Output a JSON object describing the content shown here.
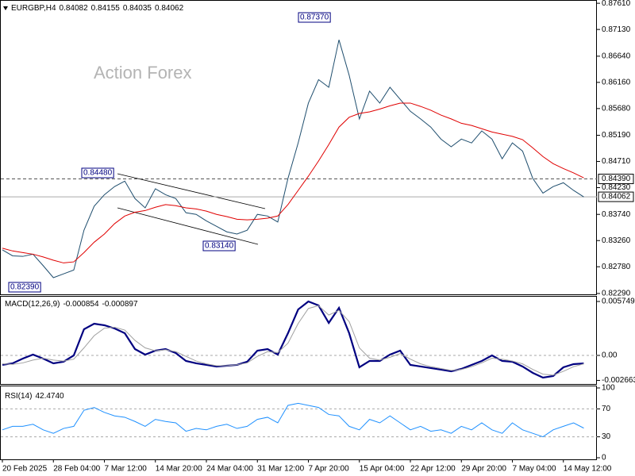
{
  "chart_data": [
    {
      "type": "line",
      "title": "EURGBP,H4",
      "ohlc": [
        0.84082,
        0.84155,
        0.84035,
        0.84062
      ],
      "watermark": "Action Forex",
      "series": [
        {
          "color": "#1f4e6e",
          "values": [
            0.8309,
            0.8298,
            0.8297,
            0.8301,
            0.828,
            0.8258,
            0.8265,
            0.8272,
            0.8345,
            0.8389,
            0.841,
            0.8425,
            0.8435,
            0.8403,
            0.8386,
            0.8421,
            0.841,
            0.8403,
            0.8377,
            0.8374,
            0.8362,
            0.8352,
            0.8342,
            0.8338,
            0.8345,
            0.8374,
            0.8371,
            0.836,
            0.844,
            0.8505,
            0.8578,
            0.8621,
            0.8607,
            0.8694,
            0.8629,
            0.8549,
            0.86,
            0.8578,
            0.8607,
            0.8585,
            0.8563,
            0.8549,
            0.8534,
            0.8512,
            0.8498,
            0.8512,
            0.8505,
            0.8527,
            0.8512,
            0.8476,
            0.8505,
            0.849,
            0.844,
            0.8413,
            0.8425,
            0.8432,
            0.8418,
            0.8406
          ]
        },
        {
          "color": "#e00000",
          "values": [
            0.8312,
            0.8307,
            0.8304,
            0.8301,
            0.8296,
            0.829,
            0.8285,
            0.8287,
            0.8304,
            0.8323,
            0.8338,
            0.8357,
            0.8371,
            0.8378,
            0.8381,
            0.8387,
            0.8392,
            0.839,
            0.8386,
            0.8384,
            0.838,
            0.8374,
            0.837,
            0.8365,
            0.8364,
            0.8365,
            0.8367,
            0.8371,
            0.8392,
            0.8418,
            0.8444,
            0.8472,
            0.8502,
            0.8534,
            0.8552,
            0.8559,
            0.8562,
            0.8567,
            0.8573,
            0.8578,
            0.8578,
            0.8572,
            0.8565,
            0.8556,
            0.8549,
            0.8541,
            0.8537,
            0.8531,
            0.8525,
            0.8521,
            0.8517,
            0.8511,
            0.8496,
            0.848,
            0.8467,
            0.8458,
            0.845,
            0.8441
          ]
        }
      ],
      "ylim": [
        0.8226,
        0.8767
      ],
      "yticks": [
        {
          "value": 0.8761,
          "label": "0.87610"
        },
        {
          "value": 0.8713,
          "label": "0.87130"
        },
        {
          "value": 0.8664,
          "label": "0.86640"
        },
        {
          "value": 0.8616,
          "label": "0.86160"
        },
        {
          "value": 0.8568,
          "label": "0.85680"
        },
        {
          "value": 0.8519,
          "label": "0.85190"
        },
        {
          "value": 0.8471,
          "label": "0.84710"
        },
        {
          "value": 0.8423,
          "label": "0.84230"
        },
        {
          "value": 0.8374,
          "label": "0.83740"
        },
        {
          "value": 0.8326,
          "label": "0.83260"
        },
        {
          "value": 0.8278,
          "label": "0.82780"
        },
        {
          "value": 0.8229,
          "label": "0.82290"
        }
      ],
      "hlines": [
        {
          "value": 0.8439,
          "label": "0.84390",
          "style": "dashed",
          "color": "#555555"
        },
        {
          "value": 0.84062,
          "label": "0.84062",
          "style": "solid",
          "color": "#aaaaaa"
        }
      ],
      "annotations": [
        "0.87370",
        "0.84480",
        "0.83140",
        "0.82390"
      ]
    },
    {
      "type": "line",
      "title": "MACD(12,26,9)",
      "header_values": [
        -0.000854,
        -0.000897
      ],
      "series": [
        {
          "color": "#000080",
          "values": [
            -0.001014,
            -0.000845,
            -0.000338,
            8.5e-05,
            -0.000338,
            -0.000845,
            -0.000676,
            0,
            0.002789,
            0.00338,
            0.003211,
            0.002873,
            0.002366,
            0.000676,
            8.5e-05,
            0.000507,
            0.000676,
            0.000254,
            -0.000592,
            -0.000845,
            -0.001014,
            -0.001183,
            -0.001099,
            -0.001014,
            -0.000676,
            0.000507,
            0.000676,
            8.5e-05,
            0.002366,
            0.004901,
            0.005746,
            0.005324,
            0.003465,
            0.00507,
            0.002366,
            -0.001268,
            -0.000592,
            -0.000592,
            8.5e-05,
            0.000507,
            -0.001014,
            -0.001183,
            -0.001352,
            -0.001521,
            -0.00169,
            -0.001437,
            -0.001014,
            -0.000592,
            0,
            -0.000592,
            -0.000676,
            -0.001183,
            -0.001859,
            -0.002366,
            -0.002197,
            -0.001268,
            -0.00093,
            -0.000854
          ]
        },
        {
          "color": "#a0a0a0",
          "values": [
            -0.0009,
            -0.00095,
            -0.0008,
            -0.0005,
            -0.0003,
            -0.0005,
            -0.0006,
            -0.0004,
            0.0008,
            0.0021,
            0.0029,
            0.003,
            0.0027,
            0.0016,
            0.0008,
            0.0005,
            0.0006,
            0.0004,
            -0.0001,
            -0.0006,
            -0.0009,
            -0.0011,
            -0.0011,
            -0.001,
            -0.0008,
            -0.0001,
            0.0004,
            0.0003,
            0.0013,
            0.0034,
            0.005,
            0.0053,
            0.0043,
            0.0048,
            0.0036,
            0.0008,
            -0.0003,
            -0.0005,
            -0.0002,
            0.0002,
            -0.0004,
            -0.0009,
            -0.0012,
            -0.0014,
            -0.0016,
            -0.0015,
            -0.0012,
            -0.0008,
            -0.0003,
            -0.0004,
            -0.0006,
            -0.0009,
            -0.0015,
            -0.002,
            -0.0021,
            -0.0017,
            -0.0012,
            -0.000897
          ]
        }
      ],
      "ylim": [
        -0.00313,
        0.00634
      ],
      "yticks": [
        0.005749,
        {
          "value": 0,
          "label": "0.00"
        },
        -0.002663
      ],
      "levels": [
        0
      ]
    },
    {
      "type": "line",
      "title": "RSI(14)",
      "header_values": [
        {
          "value": 42.474,
          "label": "42.4740"
        }
      ],
      "categories": [
        "20 Feb 2025",
        null,
        null,
        null,
        null,
        "28 Feb 04:00",
        null,
        null,
        null,
        null,
        "7 Mar 12:00",
        null,
        null,
        null,
        null,
        "14 Mar 20:00",
        null,
        null,
        null,
        null,
        "24 Mar 04:00",
        null,
        null,
        null,
        null,
        "31 Mar 12:00",
        null,
        null,
        null,
        null,
        "7 Apr 20:00",
        null,
        null,
        null,
        null,
        "15 Apr 04:00",
        null,
        null,
        null,
        null,
        "22 Apr 12:00",
        null,
        null,
        null,
        null,
        "29 Apr 20:00",
        null,
        null,
        null,
        null,
        "7 May 04:00",
        null,
        null,
        null,
        null,
        "14 May 12:00",
        null,
        null
      ],
      "series": [
        {
          "color": "#1e90ff",
          "values": [
            40,
            45,
            45,
            48,
            40,
            35,
            42,
            45,
            68,
            72,
            65,
            60,
            58,
            52,
            45,
            55,
            52,
            50,
            38,
            42,
            40,
            45,
            48,
            42,
            45,
            55,
            58,
            50,
            75,
            78,
            75,
            72,
            62,
            60,
            45,
            40,
            55,
            50,
            60,
            50,
            40,
            45,
            38,
            40,
            35,
            45,
            40,
            50,
            40,
            35,
            50,
            40,
            35,
            30,
            40,
            45,
            50,
            42.474
          ]
        }
      ],
      "ylim": [
        0,
        100
      ],
      "yticks": [
        100,
        70,
        30,
        0
      ],
      "levels": [
        70,
        30
      ]
    }
  ]
}
